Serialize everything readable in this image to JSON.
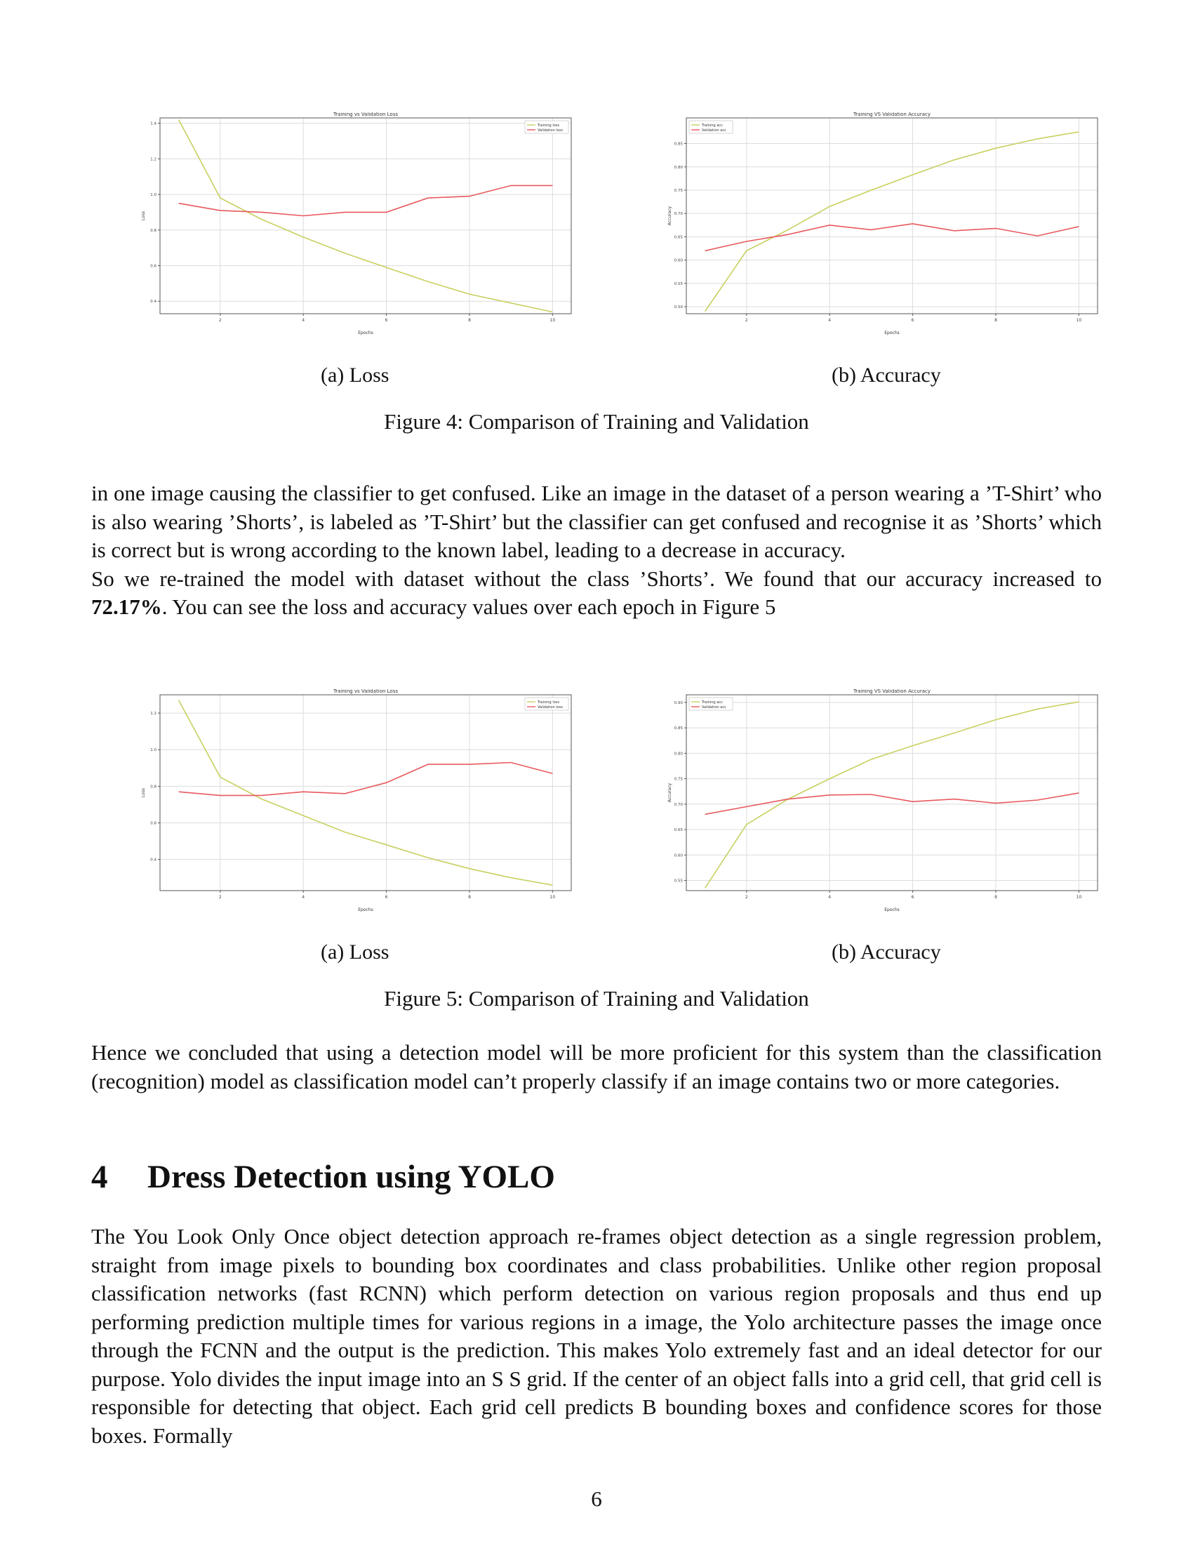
{
  "figures": [
    {
      "caption": "Figure 4: Comparison of Training and Validation",
      "subfigures": [
        {
          "caption": "(a) Loss",
          "chart_data": {
            "type": "line",
            "title": "Training vs Validation Loss",
            "xlabel": "Epochs",
            "ylabel": "Loss",
            "x": [
              1,
              2,
              3,
              4,
              5,
              6,
              7,
              8,
              9,
              10
            ],
            "xticks": [
              2,
              4,
              6,
              8,
              10
            ],
            "yticks": [
              0.4,
              0.6,
              0.8,
              1.0,
              1.2,
              1.4
            ],
            "ytick_labels": [
              "0.4",
              "0.6",
              "0.8",
              "1.0",
              "1.2",
              "1.4"
            ],
            "xlim": [
              0.55,
              10.45
            ],
            "ylim": [
              0.33,
              1.43
            ],
            "grid": true,
            "legend_position": "top-right",
            "series": [
              {
                "name": "Training loss",
                "color": "#c8d060",
                "values": [
                  1.42,
                  0.98,
                  0.86,
                  0.76,
                  0.67,
                  0.59,
                  0.51,
                  0.44,
                  0.39,
                  0.34
                ]
              },
              {
                "name": "Validation loss",
                "color": "#e8595e",
                "values": [
                  0.95,
                  0.91,
                  0.9,
                  0.88,
                  0.9,
                  0.9,
                  0.98,
                  0.99,
                  1.05,
                  1.05
                ]
              }
            ]
          }
        },
        {
          "caption": "(b) Accuracy",
          "chart_data": {
            "type": "line",
            "title": "Training VS Validation Accuracy",
            "xlabel": "Epochs",
            "ylabel": "Accuracy",
            "x": [
              1,
              2,
              3,
              4,
              5,
              6,
              7,
              8,
              9,
              10
            ],
            "xticks": [
              2,
              4,
              6,
              8,
              10
            ],
            "yticks": [
              0.5,
              0.55,
              0.6,
              0.65,
              0.7,
              0.75,
              0.8,
              0.85
            ],
            "ytick_labels": [
              "0.50",
              "0.55",
              "0.60",
              "0.65",
              "0.70",
              "0.75",
              "0.80",
              "0.85"
            ],
            "xlim": [
              0.55,
              10.45
            ],
            "ylim": [
              0.485,
              0.905
            ],
            "grid": true,
            "legend_position": "top-left",
            "series": [
              {
                "name": "Training acc",
                "color": "#c8d060",
                "values": [
                  0.49,
                  0.62,
                  0.665,
                  0.715,
                  0.75,
                  0.783,
                  0.815,
                  0.84,
                  0.86,
                  0.875
                ]
              },
              {
                "name": "Validation acc",
                "color": "#e8595e",
                "values": [
                  0.62,
                  0.64,
                  0.655,
                  0.675,
                  0.665,
                  0.678,
                  0.663,
                  0.668,
                  0.652,
                  0.672
                ]
              }
            ]
          }
        }
      ]
    },
    {
      "caption": "Figure 5: Comparison of Training and Validation",
      "subfigures": [
        {
          "caption": "(a) Loss",
          "chart_data": {
            "type": "line",
            "title": "Training vs Validation Loss",
            "xlabel": "Epochs",
            "ylabel": "Loss",
            "x": [
              1,
              2,
              3,
              4,
              5,
              6,
              7,
              8,
              9,
              10
            ],
            "xticks": [
              2,
              4,
              6,
              8,
              10
            ],
            "yticks": [
              0.4,
              0.6,
              0.8,
              1.0,
              1.2
            ],
            "ytick_labels": [
              "0.4",
              "0.6",
              "0.8",
              "1.0",
              "1.2"
            ],
            "xlim": [
              0.55,
              10.45
            ],
            "ylim": [
              0.23,
              1.3
            ],
            "grid": true,
            "legend_position": "top-right",
            "series": [
              {
                "name": "Training loss",
                "color": "#c8d060",
                "values": [
                  1.27,
                  0.85,
                  0.73,
                  0.64,
                  0.55,
                  0.48,
                  0.41,
                  0.35,
                  0.3,
                  0.26
                ]
              },
              {
                "name": "Validation loss",
                "color": "#e8595e",
                "values": [
                  0.77,
                  0.75,
                  0.75,
                  0.77,
                  0.76,
                  0.82,
                  0.92,
                  0.92,
                  0.93,
                  0.87
                ]
              }
            ]
          }
        },
        {
          "caption": "(b) Accuracy",
          "chart_data": {
            "type": "line",
            "title": "Training VS Validation Accuracy",
            "xlabel": "Epochs",
            "ylabel": "Accuracy",
            "x": [
              1,
              2,
              3,
              4,
              5,
              6,
              7,
              8,
              9,
              10
            ],
            "xticks": [
              2,
              4,
              6,
              8,
              10
            ],
            "yticks": [
              0.55,
              0.6,
              0.65,
              0.7,
              0.75,
              0.8,
              0.85,
              0.9
            ],
            "ytick_labels": [
              "0.55",
              "0.60",
              "0.65",
              "0.70",
              "0.75",
              "0.80",
              "0.85",
              "0.90"
            ],
            "xlim": [
              0.55,
              10.45
            ],
            "ylim": [
              0.53,
              0.915
            ],
            "grid": true,
            "legend_position": "top-left",
            "series": [
              {
                "name": "Training acc",
                "color": "#c8d060",
                "values": [
                  0.535,
                  0.66,
                  0.71,
                  0.75,
                  0.788,
                  0.815,
                  0.84,
                  0.866,
                  0.887,
                  0.901
                ]
              },
              {
                "name": "Validation acc",
                "color": "#e8595e",
                "values": [
                  0.68,
                  0.695,
                  0.71,
                  0.718,
                  0.719,
                  0.705,
                  0.71,
                  0.702,
                  0.708,
                  0.722
                ]
              }
            ]
          }
        }
      ]
    }
  ],
  "paragraph1": {
    "line1": "in one image causing the classifier to get confused. Like an image in the dataset of a person wearing a ’T-Shirt’ who is also wearing ’Shorts’, is labeled as ’T-Shirt’ but the classifier can get confused and recognise it as ’Shorts’ which is correct but is wrong according to the known label, leading to a decrease in accuracy.",
    "line2_pre": "So we re-trained the model with dataset without the class ’Shorts’. We found that our accuracy increased to ",
    "line2_bold": "72.17%",
    "line2_post": ". You can see the loss and accuracy values over each epoch in Figure 5"
  },
  "paragraph2": "Hence we concluded that using a detection model will be more proficient for this system than the classification (recognition) model as classification model can’t properly classify if an image contains two or more categories.",
  "section": {
    "number": "4",
    "title": "Dress Detection using YOLO"
  },
  "paragraph3": "The You Look Only Once object detection approach re-frames object detection as a single regression problem, straight from image pixels to bounding box coordinates and class probabilities. Unlike other region proposal classification networks (fast RCNN) which perform detection on various region proposals and thus end up performing prediction multiple times for various regions in a image, the Yolo architecture passes the image once through the FCNN and the output is the prediction. This makes Yolo extremely fast and an ideal detector for our purpose. Yolo divides the input image into an S  S grid. If the center of an object falls into a grid cell, that grid cell is responsible for detecting that object. Each grid cell predicts B bounding boxes and confidence scores for those boxes. Formally",
  "page_number": "6"
}
